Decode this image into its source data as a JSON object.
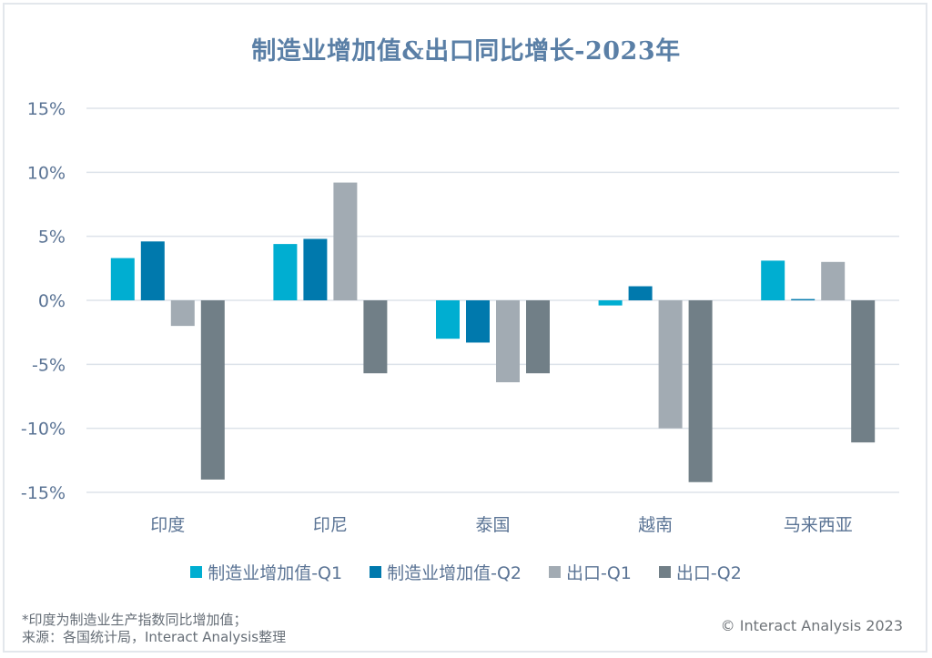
{
  "chart_data": {
    "type": "bar",
    "title": "制造业增加值&出口同比增长-2023年",
    "xlabel": "",
    "ylabel": "",
    "ylim": [
      -15,
      15
    ],
    "yticks": [
      15,
      10,
      5,
      0,
      -5,
      -10,
      -15
    ],
    "ytick_labels": [
      "15%",
      "10%",
      "5%",
      "0%",
      "-5%",
      "-10%",
      "-15%"
    ],
    "grid": true,
    "legend_position": "bottom",
    "categories": [
      "印度",
      "印尼",
      "泰国",
      "越南",
      "马来西亚"
    ],
    "series": [
      {
        "name": "制造业增加值-Q1",
        "color": "#00aed1",
        "values": [
          3.3,
          4.4,
          -3.0,
          -0.4,
          3.1
        ]
      },
      {
        "name": "制造业增加值-Q2",
        "color": "#0079ad",
        "values": [
          4.6,
          4.8,
          -3.3,
          1.1,
          0.1
        ]
      },
      {
        "name": "出口-Q1",
        "color": "#a2abb3",
        "values": [
          -2.0,
          9.2,
          -6.4,
          -10.0,
          3.0
        ]
      },
      {
        "name": "出口-Q2",
        "color": "#717f87",
        "values": [
          -14.0,
          -5.7,
          -5.7,
          -14.2,
          -11.1
        ]
      }
    ]
  },
  "footnote": {
    "line1": "*印度为制造业生产指数同比增加值；",
    "line2": "来源：各国统计局，Interact Analysis整理"
  },
  "copyright": "© Interact Analysis 2023"
}
